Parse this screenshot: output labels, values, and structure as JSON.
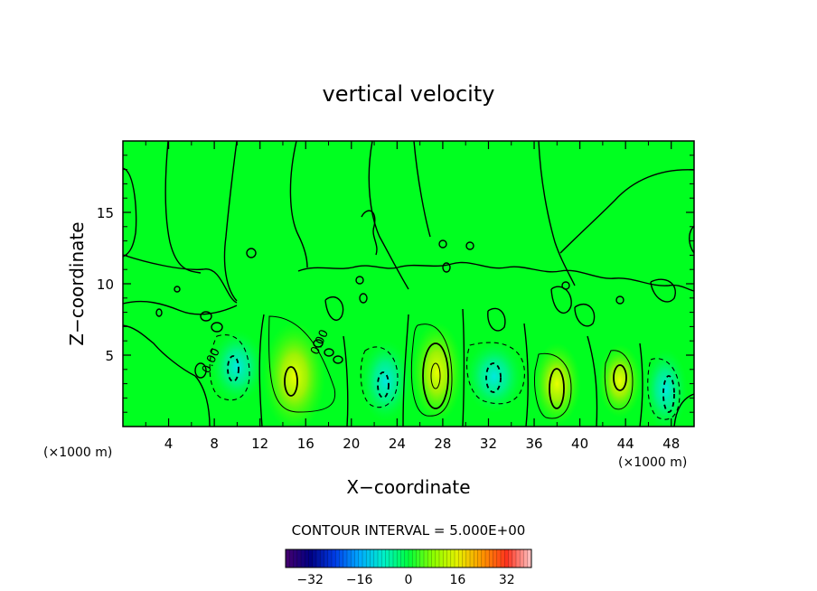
{
  "chart_data": {
    "type": "heatmap",
    "title": "vertical velocity",
    "xlabel": "X−coordinate",
    "ylabel": "Z−coordinate",
    "x_unit_left": "(×1000 m)",
    "x_unit_right": "(×1000 m)",
    "xlim": [
      0,
      50
    ],
    "ylim": [
      0,
      20
    ],
    "x_ticks": [
      {
        "value": 4,
        "label": "4"
      },
      {
        "value": 8,
        "label": "8"
      },
      {
        "value": 12,
        "label": "12"
      },
      {
        "value": 16,
        "label": "16"
      },
      {
        "value": 20,
        "label": "20"
      },
      {
        "value": 24,
        "label": "24"
      },
      {
        "value": 28,
        "label": "28"
      },
      {
        "value": 32,
        "label": "32"
      },
      {
        "value": 36,
        "label": "36"
      },
      {
        "value": 40,
        "label": "40"
      },
      {
        "value": 44,
        "label": "44"
      },
      {
        "value": 48,
        "label": "48"
      }
    ],
    "y_ticks": [
      {
        "value": 5,
        "label": "5"
      },
      {
        "value": 10,
        "label": "10"
      },
      {
        "value": 15,
        "label": "15"
      }
    ],
    "contour_interval_text": "CONTOUR INTERVAL = 5.000E+00",
    "contour_interval": 5,
    "zero_contour_labels": [
      {
        "x": 8,
        "y": 4.5,
        "text": "0.00"
      },
      {
        "x": 17.5,
        "y": 5.8,
        "text": "0.00"
      }
    ],
    "colorbar": {
      "range": [
        -40,
        40
      ],
      "ticks": [
        {
          "value": -32,
          "label": "−32"
        },
        {
          "value": -16,
          "label": "−16"
        },
        {
          "value": 0,
          "label": "0"
        },
        {
          "value": 16,
          "label": "16"
        },
        {
          "value": 32,
          "label": "32"
        }
      ]
    },
    "cells": [
      {
        "x": 10,
        "y": 4.2,
        "value": -16,
        "sx": 1.5,
        "sy": 1.6
      },
      {
        "x": 15,
        "y": 3.5,
        "value": 14,
        "sx": 1.7,
        "sy": 2.4
      },
      {
        "x": 23,
        "y": 3.2,
        "value": -14,
        "sx": 1.4,
        "sy": 1.8
      },
      {
        "x": 27.5,
        "y": 3.8,
        "value": 25,
        "sx": 1.4,
        "sy": 2.2
      },
      {
        "x": 32.5,
        "y": 3.5,
        "value": -15,
        "sx": 1.6,
        "sy": 1.6
      },
      {
        "x": 38,
        "y": 3.0,
        "value": 18,
        "sx": 1.3,
        "sy": 1.8
      },
      {
        "x": 43.5,
        "y": 3.2,
        "value": 16,
        "sx": 1.2,
        "sy": 1.6
      },
      {
        "x": 47.5,
        "y": 2.6,
        "value": -16,
        "sx": 1.2,
        "sy": 1.8
      }
    ]
  }
}
